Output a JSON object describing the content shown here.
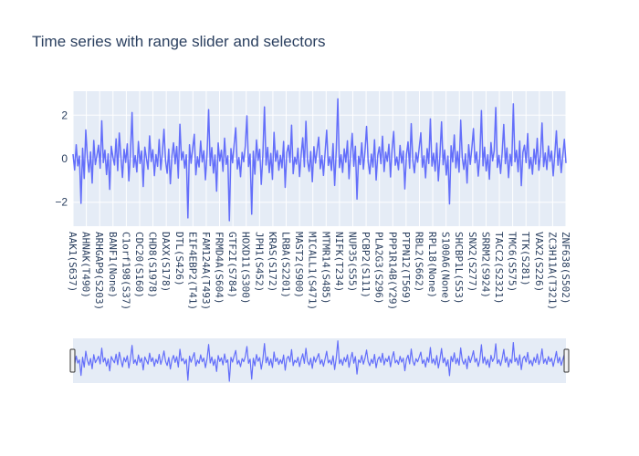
{
  "chart_data": {
    "type": "line",
    "title": "Time series with range slider and selectors",
    "xlabel": "",
    "ylabel": "",
    "ylim": [
      -3.1,
      3.1
    ],
    "y_ticks": [
      -2,
      0,
      2
    ],
    "y_tick_labels": [
      "−2",
      "0",
      "2"
    ],
    "x_tick_labels": [
      "AAK1(S637)",
      "AHNAK(T490)",
      "ARHGAP9(S203)",
      "BANF1(None)",
      "C1orf198(S37)",
      "CDC20(S160)",
      "CHD8(S1978)",
      "DAXX(S178)",
      "DTL(S426)",
      "EIF4EBP2(T41)",
      "FAM124A(T493)",
      "FRMD4A(S604)",
      "GTF2I(S784)",
      "HOXD11(S300)",
      "JPH1(S452)",
      "KRAS(S172)",
      "LRBA(S2201)",
      "MAST2(S900)",
      "MICALL1(S471)",
      "MTMR14(S485)",
      "NIFK(T234)",
      "NUP35(S55)",
      "PCBP2(S111)",
      "PLA2G3(S296)",
      "PPP1R14B(Y29)",
      "PTPN12(T569)",
      "RBL2(S662)",
      "RPL18(None)",
      "S100A6(None)",
      "SHCBP1L(S53)",
      "SNX2(S277)",
      "SRRM2(S924)",
      "TACC2(S2321)",
      "TMC6(S575)",
      "TTK(S281)",
      "VAX2(S226)",
      "ZC3H11A(T321)",
      "ZNF638(S502)"
    ],
    "grid": true,
    "legend": "none",
    "range_slider": true,
    "series": [
      {
        "color": "#636efa",
        "y": [
          0.21,
          -0.52,
          0.64,
          -0.33,
          0.12,
          -2.05,
          0.48,
          -0.91,
          1.32,
          0.05,
          -0.62,
          0.31,
          -1.12,
          0.84,
          -0.27,
          0.15,
          0.62,
          -0.44,
          1.74,
          -0.18,
          0.39,
          -0.73,
          0.22,
          -1.41,
          0.57,
          0.08,
          -0.29,
          0.91,
          -0.55,
          1.18,
          0.11,
          -0.86,
          0.43,
          -0.17,
          0.68,
          -1.02,
          0.26,
          2.12,
          -0.39,
          0.14,
          -0.61,
          0.79,
          -0.22,
          0.35,
          -1.28,
          0.53,
          0.02,
          -0.48,
          1.05,
          -0.13,
          0.41,
          -0.78,
          0.19,
          -0.35,
          0.88,
          -0.51,
          0.27,
          1.35,
          -0.09,
          -0.67,
          0.44,
          -1.15,
          0.12,
          0.73,
          -0.24,
          0.56,
          -0.89,
          1.58,
          -0.06,
          0.32,
          -0.43,
          0.18,
          -2.72,
          0.64,
          -0.21,
          0.47,
          1.12,
          -0.74,
          0.09,
          -0.38,
          0.81,
          -0.15,
          0.36,
          -0.97,
          0.23,
          2.25,
          -0.32,
          0.51,
          -0.66,
          0.17,
          -1.49,
          0.72,
          -0.11,
          0.39,
          -0.58,
          0.94,
          -0.26,
          0.13,
          -2.85,
          0.46,
          -0.19,
          0.67,
          1.42,
          -0.47,
          0.05,
          -0.83,
          0.29,
          -0.14,
          0.58,
          1.97,
          -0.36,
          0.21,
          -2.55,
          0.34,
          -0.71,
          0.86,
          -0.08,
          0.43,
          -1.18,
          0.16,
          2.38,
          -0.29,
          0.52,
          -0.64,
          0.24,
          -0.95,
          1.21,
          -0.12,
          0.37,
          -0.53,
          0.15,
          -0.42,
          0.79,
          -1.32,
          0.28,
          0.62,
          -0.17,
          1.54,
          -0.69,
          0.07,
          -0.25,
          0.48,
          -0.82,
          0.19,
          0.96,
          -0.37,
          1.72,
          -0.1,
          -0.58,
          0.33,
          -1.06,
          0.55,
          -0.2,
          0.41,
          0.99,
          -0.46,
          0.14,
          -0.77,
          0.26,
          1.31,
          -0.31,
          0.09,
          -0.54,
          0.69,
          -1.23,
          0.37,
          2.75,
          -0.41,
          0.18,
          -0.63,
          0.45,
          -0.16,
          0.82,
          -0.92,
          0.24,
          1.16,
          -0.35,
          0.57,
          -1.86,
          0.11,
          -0.27,
          0.73,
          -0.48,
          0.32,
          1.48,
          -0.13,
          -0.7,
          0.21,
          -0.38,
          0.87,
          -0.98,
          0.15,
          0.54,
          -0.23,
          1.03,
          -0.59,
          0.3,
          -0.12,
          0.66,
          -0.84,
          0.42,
          1.25,
          -0.3,
          0.08,
          -0.51,
          0.61,
          -0.2,
          0.35,
          -1.39,
          0.19,
          0.77,
          -0.44,
          1.61,
          -0.07,
          -0.65,
          0.28,
          -0.16,
          0.5,
          1.19,
          -0.39,
          0.13,
          -0.88,
          0.46,
          -0.22,
          1.83,
          -0.34,
          0.25,
          -0.57,
          0.71,
          -1.02,
          0.17,
          1.69,
          -0.28,
          0.4,
          -0.75,
          0.12,
          -2.08,
          0.59,
          -0.15,
          1.09,
          -0.42,
          0.33,
          -0.62,
          1.77,
          0.04,
          -0.49,
          0.22,
          -1.12,
          0.64,
          -0.26,
          0.48,
          1.38,
          -0.19,
          0.31,
          -0.8,
          0.09,
          2.21,
          -0.33,
          0.53,
          -0.56,
          0.18,
          -0.94,
          0.74,
          -0.1,
          0.36,
          2.35,
          -0.4,
          0.15,
          -0.68,
          0.27,
          1.57,
          -0.23,
          0.49,
          -0.87,
          0.2,
          -0.32,
          2.52,
          -0.14,
          0.38,
          -0.6,
          0.81,
          -1.24,
          0.29,
          0.62,
          -0.18,
          1.15,
          -0.45,
          0.06,
          -0.71,
          0.44,
          -0.25,
          0.93,
          -0.53,
          0.19,
          1.64,
          -0.36,
          0.26,
          -0.5,
          0.58,
          -0.12,
          0.35,
          -0.79,
          0.21,
          1.28,
          -0.3,
          0.47,
          -0.64,
          0.13,
          0.89,
          -0.2
        ]
      }
    ]
  }
}
